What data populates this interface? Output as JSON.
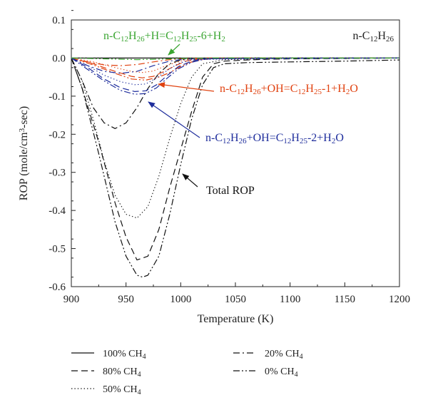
{
  "chart_data": {
    "type": "line",
    "title": "",
    "xlabel": "Temperature (K)",
    "ylabel": "ROP (mole/cm³-sec)",
    "xlim": [
      900,
      1200
    ],
    "ylim": [
      -0.6,
      0.1
    ],
    "xticks": [
      900,
      950,
      1000,
      1050,
      1100,
      1150,
      1200
    ],
    "yticks": [
      0.1,
      0.0,
      -0.1,
      -0.2,
      -0.3,
      -0.4,
      -0.5,
      -0.6
    ],
    "ytick_labels": [
      "0.1",
      "0.0",
      "-0.1",
      "-0.2",
      "-0.3",
      "-0.4",
      "-0.5",
      "-0.6"
    ],
    "species_label": "n-C12H26",
    "colors": {
      "total": "#111111",
      "oh1": "#e0410f",
      "oh2": "#1e2d9c",
      "h6": "#3aa531",
      "arrow_oh1": "#e0410f",
      "arrow_oh2": "#1e2d9c",
      "arrow_h6": "#3aa531",
      "arrow_total": "#111111"
    },
    "legend": [
      {
        "key": "100",
        "label": "100% CH4",
        "style": "solid"
      },
      {
        "key": "80",
        "label": "80% CH4",
        "style": "dashed"
      },
      {
        "key": "50",
        "label": "50% CH4",
        "style": "dotted"
      },
      {
        "key": "20",
        "label": "20% CH4",
        "style": "dashdot"
      },
      {
        "key": "0",
        "label": "0% CH4",
        "style": "dashdotdot"
      }
    ],
    "annotations": [
      {
        "key": "h6",
        "label": "n-C12H26+H=C12H25-6+H2"
      },
      {
        "key": "oh1",
        "label": "n-C12H26+OH=C12H25-1+H2O"
      },
      {
        "key": "oh2",
        "label": "n-C12H26+OH=C12H25-2+H2O"
      },
      {
        "key": "total",
        "label": "Total ROP"
      }
    ],
    "series": [
      {
        "name": "Total ROP 100% CH4",
        "group": "total",
        "style": "solid",
        "x": [
          900,
          1200
        ],
        "y": [
          0.0,
          0.0
        ]
      },
      {
        "name": "Total ROP 80% CH4",
        "group": "total",
        "style": "dashed",
        "x": [
          900,
          910,
          925,
          940,
          950,
          960,
          970,
          980,
          990,
          1000,
          1010,
          1020,
          1030,
          1040,
          1060,
          1080,
          1100,
          1150,
          1200
        ],
        "y": [
          0.0,
          -0.08,
          -0.22,
          -0.38,
          -0.47,
          -0.53,
          -0.52,
          -0.45,
          -0.34,
          -0.24,
          -0.14,
          -0.05,
          -0.015,
          -0.008,
          -0.005,
          -0.003,
          -0.002,
          -0.001,
          0.0
        ]
      },
      {
        "name": "Total ROP 50% CH4",
        "group": "total",
        "style": "dotted",
        "x": [
          900,
          910,
          920,
          930,
          940,
          950,
          960,
          970,
          980,
          990,
          1000,
          1010,
          1020,
          1040,
          1100,
          1200
        ],
        "y": [
          0.0,
          -0.06,
          -0.16,
          -0.27,
          -0.36,
          -0.41,
          -0.42,
          -0.39,
          -0.31,
          -0.21,
          -0.12,
          -0.05,
          -0.015,
          -0.004,
          -0.001,
          0.0
        ]
      },
      {
        "name": "Total ROP 20% CH4",
        "group": "total",
        "style": "dashdot",
        "x": [
          900,
          910,
          920,
          930,
          940,
          950,
          960,
          970,
          980,
          990,
          1000,
          1010,
          1020,
          1040,
          1100,
          1200
        ],
        "y": [
          0.0,
          -0.06,
          -0.13,
          -0.17,
          -0.185,
          -0.17,
          -0.13,
          -0.08,
          -0.04,
          -0.015,
          -0.005,
          -0.002,
          -0.001,
          0.0,
          0.0,
          0.0
        ]
      },
      {
        "name": "Total ROP 0% CH4",
        "group": "total",
        "style": "dashdotdot",
        "x": [
          900,
          910,
          925,
          940,
          950,
          960,
          965,
          970,
          980,
          990,
          1000,
          1010,
          1020,
          1030,
          1040,
          1060,
          1100,
          1150,
          1200
        ],
        "y": [
          0.0,
          -0.08,
          -0.25,
          -0.43,
          -0.52,
          -0.57,
          -0.575,
          -0.57,
          -0.52,
          -0.41,
          -0.28,
          -0.16,
          -0.07,
          -0.025,
          -0.015,
          -0.012,
          -0.01,
          -0.008,
          -0.005
        ]
      },
      {
        "name": "OH=C12H25-1 80% CH4",
        "group": "oh1",
        "style": "dashed",
        "x": [
          900,
          920,
          940,
          955,
          965,
          975,
          985,
          995,
          1005,
          1015,
          1030,
          1100,
          1200
        ],
        "y": [
          0.0,
          -0.015,
          -0.035,
          -0.048,
          -0.052,
          -0.048,
          -0.035,
          -0.02,
          -0.008,
          -0.003,
          -0.001,
          0.0,
          0.0
        ]
      },
      {
        "name": "OH=C12H25-1 50% CH4",
        "group": "oh1",
        "style": "dotted",
        "x": [
          900,
          920,
          940,
          955,
          965,
          975,
          985,
          995,
          1005,
          1020,
          1100,
          1200
        ],
        "y": [
          0.0,
          -0.01,
          -0.025,
          -0.035,
          -0.038,
          -0.034,
          -0.022,
          -0.012,
          -0.004,
          -0.001,
          0.0,
          0.0
        ]
      },
      {
        "name": "OH=C12H25-1 20% CH4",
        "group": "oh1",
        "style": "dashdot",
        "x": [
          900,
          915,
          930,
          945,
          960,
          975,
          990,
          1000,
          1020,
          1200
        ],
        "y": [
          0.0,
          -0.01,
          -0.018,
          -0.02,
          -0.017,
          -0.01,
          -0.004,
          -0.002,
          0.0,
          0.0
        ]
      },
      {
        "name": "OH=C12H25-1 0% CH4",
        "group": "oh1",
        "style": "dashdotdot",
        "x": [
          900,
          920,
          940,
          955,
          968,
          980,
          990,
          1000,
          1010,
          1020,
          1030,
          1100,
          1200
        ],
        "y": [
          0.0,
          -0.018,
          -0.04,
          -0.055,
          -0.058,
          -0.05,
          -0.038,
          -0.022,
          -0.01,
          -0.004,
          -0.001,
          0.0,
          0.0
        ]
      },
      {
        "name": "OH=C12H25-2 80% CH4",
        "group": "oh2",
        "style": "dashed",
        "x": [
          900,
          915,
          930,
          945,
          958,
          968,
          978,
          988,
          998,
          1010,
          1020,
          1100,
          1200
        ],
        "y": [
          0.0,
          -0.025,
          -0.055,
          -0.078,
          -0.088,
          -0.086,
          -0.07,
          -0.045,
          -0.022,
          -0.008,
          -0.002,
          0.0,
          0.0
        ]
      },
      {
        "name": "OH=C12H25-2 50% CH4",
        "group": "oh2",
        "style": "dotted",
        "x": [
          900,
          915,
          930,
          945,
          958,
          968,
          978,
          988,
          998,
          1010,
          1100,
          1200
        ],
        "y": [
          0.0,
          -0.02,
          -0.045,
          -0.062,
          -0.07,
          -0.068,
          -0.052,
          -0.032,
          -0.014,
          -0.004,
          0.0,
          0.0
        ]
      },
      {
        "name": "OH=C12H25-2 20% CH4",
        "group": "oh2",
        "style": "dashdot",
        "x": [
          900,
          915,
          930,
          945,
          960,
          975,
          990,
          1005,
          1200
        ],
        "y": [
          0.0,
          -0.02,
          -0.035,
          -0.04,
          -0.035,
          -0.02,
          -0.008,
          -0.002,
          0.0
        ]
      },
      {
        "name": "OH=C12H25-2 0% CH4",
        "group": "oh2",
        "style": "dashdotdot",
        "x": [
          900,
          915,
          930,
          945,
          958,
          968,
          978,
          988,
          998,
          1010,
          1020,
          1030,
          1100,
          1200
        ],
        "y": [
          0.0,
          -0.03,
          -0.06,
          -0.085,
          -0.095,
          -0.093,
          -0.078,
          -0.052,
          -0.028,
          -0.011,
          -0.004,
          -0.001,
          0.0,
          0.0
        ]
      },
      {
        "name": "H=C12H25-6 0% CH4",
        "group": "h6",
        "style": "dashdotdot",
        "x": [
          900,
          930,
          960,
          980,
          1000,
          1030,
          1200
        ],
        "y": [
          0.0,
          -0.002,
          -0.004,
          -0.003,
          -0.001,
          0.0,
          0.0
        ]
      }
    ]
  }
}
